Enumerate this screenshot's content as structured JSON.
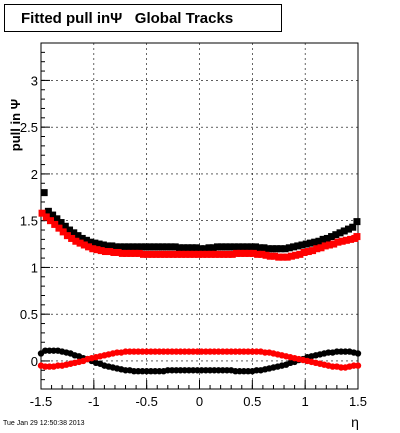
{
  "chart_data": {
    "type": "scatter",
    "title": "Fitted pull inΨ   Global Tracks",
    "xlabel": "η",
    "ylabel": "pull in  Ψ",
    "xlim": [
      -1.5,
      1.5
    ],
    "ylim": [
      -0.3,
      3.4
    ],
    "xticks": [
      "-1.5",
      "-1",
      "-0.5",
      "0",
      "0.5",
      "1",
      "1.5"
    ],
    "yticks": [
      "0",
      "0.5",
      "1",
      "1.5",
      "2",
      "2.5",
      "3"
    ],
    "grid": true,
    "series": [
      {
        "color": "#000000",
        "marker": "square",
        "x": [
          -1.47,
          -1.43,
          -1.39,
          -1.35,
          -1.31,
          -1.27,
          -1.23,
          -1.19,
          -1.15,
          -1.11,
          -1.07,
          -1.03,
          -0.99,
          -0.95,
          -0.91,
          -0.87,
          -0.83,
          -0.79,
          -0.75,
          -0.71,
          -0.67,
          -0.63,
          -0.59,
          -0.55,
          -0.51,
          -0.47,
          -0.43,
          -0.39,
          -0.35,
          -0.31,
          -0.27,
          -0.23,
          -0.19,
          -0.15,
          -0.11,
          -0.07,
          -0.03,
          0.01,
          0.05,
          0.09,
          0.13,
          0.17,
          0.21,
          0.25,
          0.29,
          0.33,
          0.37,
          0.41,
          0.45,
          0.49,
          0.53,
          0.57,
          0.61,
          0.65,
          0.69,
          0.73,
          0.77,
          0.81,
          0.85,
          0.89,
          0.93,
          0.97,
          1.01,
          1.05,
          1.09,
          1.13,
          1.17,
          1.21,
          1.25,
          1.29,
          1.33,
          1.37,
          1.41,
          1.45,
          1.49
        ],
        "y": [
          1.8,
          1.6,
          1.56,
          1.52,
          1.48,
          1.44,
          1.4,
          1.37,
          1.34,
          1.31,
          1.29,
          1.27,
          1.26,
          1.25,
          1.24,
          1.23,
          1.23,
          1.22,
          1.22,
          1.22,
          1.22,
          1.22,
          1.22,
          1.22,
          1.22,
          1.22,
          1.22,
          1.22,
          1.22,
          1.22,
          1.22,
          1.22,
          1.21,
          1.21,
          1.21,
          1.21,
          1.21,
          1.2,
          1.2,
          1.21,
          1.21,
          1.22,
          1.22,
          1.22,
          1.22,
          1.22,
          1.22,
          1.22,
          1.22,
          1.22,
          1.22,
          1.21,
          1.21,
          1.2,
          1.2,
          1.2,
          1.2,
          1.2,
          1.21,
          1.22,
          1.23,
          1.24,
          1.25,
          1.26,
          1.27,
          1.28,
          1.3,
          1.31,
          1.33,
          1.35,
          1.37,
          1.39,
          1.41,
          1.43,
          1.49
        ]
      },
      {
        "color": "#ff0000",
        "marker": "square",
        "x": [
          -1.49,
          -1.45,
          -1.41,
          -1.37,
          -1.33,
          -1.29,
          -1.25,
          -1.21,
          -1.17,
          -1.13,
          -1.09,
          -1.05,
          -1.01,
          -0.97,
          -0.93,
          -0.89,
          -0.85,
          -0.81,
          -0.77,
          -0.73,
          -0.69,
          -0.65,
          -0.61,
          -0.57,
          -0.53,
          -0.49,
          -0.45,
          -0.41,
          -0.37,
          -0.33,
          -0.29,
          -0.25,
          -0.21,
          -0.17,
          -0.13,
          -0.09,
          -0.05,
          -0.01,
          0.03,
          0.07,
          0.11,
          0.15,
          0.19,
          0.23,
          0.27,
          0.31,
          0.35,
          0.39,
          0.43,
          0.47,
          0.51,
          0.55,
          0.59,
          0.63,
          0.67,
          0.71,
          0.75,
          0.79,
          0.83,
          0.87,
          0.91,
          0.95,
          0.99,
          1.03,
          1.07,
          1.11,
          1.15,
          1.19,
          1.23,
          1.27,
          1.31,
          1.35,
          1.39,
          1.43,
          1.47,
          1.49
        ],
        "y": [
          1.58,
          1.54,
          1.5,
          1.46,
          1.42,
          1.38,
          1.34,
          1.31,
          1.28,
          1.26,
          1.24,
          1.22,
          1.2,
          1.19,
          1.18,
          1.17,
          1.17,
          1.16,
          1.16,
          1.15,
          1.15,
          1.15,
          1.15,
          1.15,
          1.14,
          1.14,
          1.14,
          1.14,
          1.14,
          1.14,
          1.14,
          1.14,
          1.14,
          1.14,
          1.14,
          1.14,
          1.14,
          1.14,
          1.14,
          1.14,
          1.14,
          1.14,
          1.14,
          1.14,
          1.14,
          1.14,
          1.15,
          1.15,
          1.15,
          1.15,
          1.15,
          1.14,
          1.14,
          1.13,
          1.12,
          1.12,
          1.11,
          1.11,
          1.11,
          1.12,
          1.13,
          1.14,
          1.16,
          1.17,
          1.18,
          1.2,
          1.21,
          1.23,
          1.24,
          1.25,
          1.27,
          1.28,
          1.29,
          1.3,
          1.31,
          1.33
        ]
      },
      {
        "color": "#000000",
        "marker": "circle",
        "x": [
          -1.5,
          -1.46,
          -1.42,
          -1.38,
          -1.34,
          -1.3,
          -1.26,
          -1.22,
          -1.18,
          -1.14,
          -1.1,
          -1.06,
          -1.02,
          -0.98,
          -0.94,
          -0.9,
          -0.86,
          -0.82,
          -0.78,
          -0.74,
          -0.7,
          -0.66,
          -0.62,
          -0.58,
          -0.54,
          -0.5,
          -0.46,
          -0.42,
          -0.38,
          -0.34,
          -0.3,
          -0.26,
          -0.22,
          -0.18,
          -0.14,
          -0.1,
          -0.06,
          -0.02,
          0.02,
          0.06,
          0.1,
          0.14,
          0.18,
          0.22,
          0.26,
          0.3,
          0.34,
          0.38,
          0.42,
          0.46,
          0.5,
          0.54,
          0.58,
          0.62,
          0.66,
          0.7,
          0.74,
          0.78,
          0.82,
          0.86,
          0.9,
          0.94,
          0.98,
          1.02,
          1.06,
          1.1,
          1.14,
          1.18,
          1.22,
          1.26,
          1.3,
          1.34,
          1.38,
          1.42,
          1.46,
          1.5
        ],
        "y": [
          0.08,
          0.11,
          0.11,
          0.11,
          0.11,
          0.1,
          0.09,
          0.08,
          0.06,
          0.05,
          0.03,
          0.02,
          0.0,
          -0.02,
          -0.03,
          -0.05,
          -0.06,
          -0.07,
          -0.08,
          -0.09,
          -0.1,
          -0.1,
          -0.11,
          -0.11,
          -0.11,
          -0.11,
          -0.11,
          -0.11,
          -0.11,
          -0.11,
          -0.1,
          -0.1,
          -0.1,
          -0.1,
          -0.1,
          -0.1,
          -0.1,
          -0.1,
          -0.1,
          -0.1,
          -0.1,
          -0.1,
          -0.1,
          -0.1,
          -0.1,
          -0.1,
          -0.11,
          -0.11,
          -0.11,
          -0.11,
          -0.11,
          -0.1,
          -0.1,
          -0.09,
          -0.08,
          -0.07,
          -0.06,
          -0.05,
          -0.04,
          -0.02,
          -0.01,
          0.01,
          0.02,
          0.04,
          0.05,
          0.06,
          0.07,
          0.08,
          0.09,
          0.09,
          0.1,
          0.1,
          0.1,
          0.1,
          0.09,
          0.08
        ]
      },
      {
        "color": "#ff0000",
        "marker": "circle",
        "x": [
          -1.5,
          -1.46,
          -1.42,
          -1.38,
          -1.34,
          -1.3,
          -1.26,
          -1.22,
          -1.18,
          -1.14,
          -1.1,
          -1.06,
          -1.02,
          -0.98,
          -0.94,
          -0.9,
          -0.86,
          -0.82,
          -0.78,
          -0.74,
          -0.7,
          -0.66,
          -0.62,
          -0.58,
          -0.54,
          -0.5,
          -0.46,
          -0.42,
          -0.38,
          -0.34,
          -0.3,
          -0.26,
          -0.22,
          -0.18,
          -0.14,
          -0.1,
          -0.06,
          -0.02,
          0.02,
          0.06,
          0.1,
          0.14,
          0.18,
          0.22,
          0.26,
          0.3,
          0.34,
          0.38,
          0.42,
          0.46,
          0.5,
          0.54,
          0.58,
          0.62,
          0.66,
          0.7,
          0.74,
          0.78,
          0.82,
          0.86,
          0.9,
          0.94,
          0.98,
          1.02,
          1.06,
          1.1,
          1.14,
          1.18,
          1.22,
          1.26,
          1.3,
          1.34,
          1.38,
          1.42,
          1.46,
          1.5
        ],
        "y": [
          -0.05,
          -0.06,
          -0.06,
          -0.06,
          -0.05,
          -0.05,
          -0.04,
          -0.03,
          -0.02,
          -0.01,
          0.0,
          0.02,
          0.03,
          0.04,
          0.05,
          0.06,
          0.07,
          0.08,
          0.09,
          0.09,
          0.1,
          0.1,
          0.1,
          0.1,
          0.1,
          0.1,
          0.1,
          0.1,
          0.1,
          0.1,
          0.1,
          0.1,
          0.1,
          0.1,
          0.1,
          0.1,
          0.1,
          0.1,
          0.1,
          0.1,
          0.1,
          0.1,
          0.1,
          0.1,
          0.1,
          0.1,
          0.1,
          0.1,
          0.1,
          0.1,
          0.1,
          0.1,
          0.1,
          0.09,
          0.09,
          0.08,
          0.07,
          0.06,
          0.05,
          0.04,
          0.03,
          0.02,
          0.01,
          0.0,
          -0.01,
          -0.02,
          -0.03,
          -0.04,
          -0.05,
          -0.06,
          -0.06,
          -0.07,
          -0.07,
          -0.06,
          -0.05,
          -0.05
        ]
      }
    ]
  },
  "footer": {
    "timestamp": "Tue Jan 29 12:50:38 2013"
  }
}
